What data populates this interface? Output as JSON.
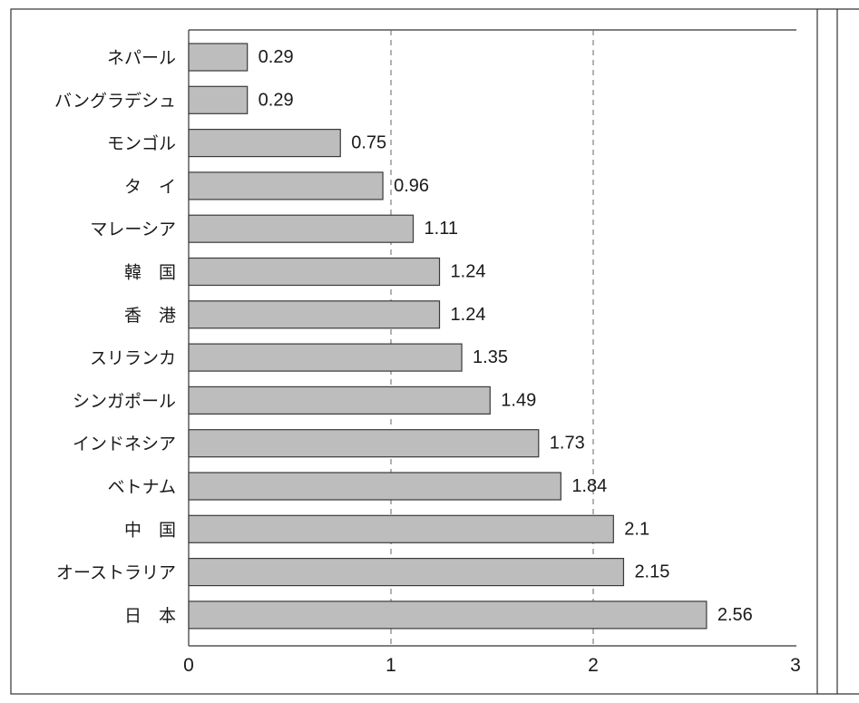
{
  "chart_data": {
    "type": "bar",
    "orientation": "horizontal",
    "categories": [
      "ネパール",
      "バングラデシュ",
      "モンゴル",
      "タ　イ",
      "マレーシア",
      "韓　国",
      "香　港",
      "スリランカ",
      "シンガポール",
      "インドネシア",
      "ベトナム",
      "中　国",
      "オーストラリア",
      "日　本"
    ],
    "values": [
      0.29,
      0.29,
      0.75,
      0.96,
      1.11,
      1.24,
      1.24,
      1.35,
      1.49,
      1.73,
      1.84,
      2.1,
      2.15,
      2.56
    ],
    "value_labels": [
      "0.29",
      "0.29",
      "0.75",
      "0.96",
      "1.11",
      "1.24",
      "1.24",
      "1.35",
      "1.49",
      "1.73",
      "1.84",
      "2.1",
      "2.15",
      "2.56"
    ],
    "xlim": [
      0,
      3
    ],
    "x_ticks": [
      0,
      1,
      2,
      3
    ],
    "x_tick_labels": [
      "0",
      "1",
      "2",
      "3"
    ],
    "grid": "vertical dashed",
    "title": "",
    "xlabel": "",
    "ylabel": "",
    "colors": {
      "bar_fill": "#bdbdbd",
      "bar_stroke": "#3a3a3a",
      "text": "#1a1a1a"
    }
  }
}
